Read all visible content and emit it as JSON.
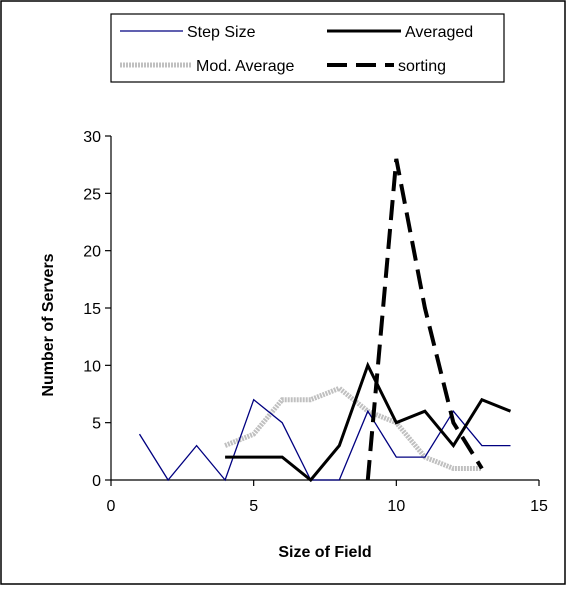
{
  "chart_data": {
    "type": "line",
    "title": "",
    "xlabel": "Size of Field",
    "ylabel": "Number of Servers",
    "xlim": [
      0,
      15
    ],
    "ylim": [
      0,
      30
    ],
    "x_ticks": [
      0,
      5,
      10,
      15
    ],
    "y_ticks": [
      0,
      5,
      10,
      15,
      20,
      25,
      30
    ],
    "grid": false,
    "legend_position": "top",
    "series": [
      {
        "name": "Step Size",
        "color": "#000080",
        "style": "thin-solid",
        "points": [
          [
            1,
            4
          ],
          [
            2,
            0
          ],
          [
            3,
            3
          ],
          [
            4,
            0
          ],
          [
            5,
            7
          ],
          [
            6,
            5
          ],
          [
            7,
            0
          ],
          [
            8,
            0
          ],
          [
            9,
            6
          ],
          [
            10,
            2
          ],
          [
            11,
            2
          ],
          [
            12,
            6
          ],
          [
            13,
            3
          ],
          [
            14,
            3
          ]
        ]
      },
      {
        "name": "Averaged",
        "color": "#000000",
        "style": "thick-solid",
        "points": [
          [
            4,
            2
          ],
          [
            5,
            2
          ],
          [
            6,
            2
          ],
          [
            7,
            0
          ],
          [
            8,
            3
          ],
          [
            9,
            10
          ],
          [
            10,
            5
          ],
          [
            11,
            6
          ],
          [
            12,
            3
          ],
          [
            13,
            7
          ],
          [
            14,
            6
          ]
        ]
      },
      {
        "name": "Mod. Average",
        "color": "#c0c0c0",
        "style": "thick-dotted",
        "points": [
          [
            4,
            3
          ],
          [
            5,
            4
          ],
          [
            6,
            7
          ],
          [
            7,
            7
          ],
          [
            8,
            8
          ],
          [
            9,
            6
          ],
          [
            10,
            5
          ],
          [
            11,
            2
          ],
          [
            12,
            1
          ],
          [
            13,
            1
          ]
        ]
      },
      {
        "name": "sorting",
        "color": "#000000",
        "style": "thick-dashed",
        "points": [
          [
            9,
            0
          ],
          [
            10,
            28
          ],
          [
            11,
            15
          ],
          [
            12,
            5
          ],
          [
            13,
            1
          ]
        ]
      }
    ]
  }
}
